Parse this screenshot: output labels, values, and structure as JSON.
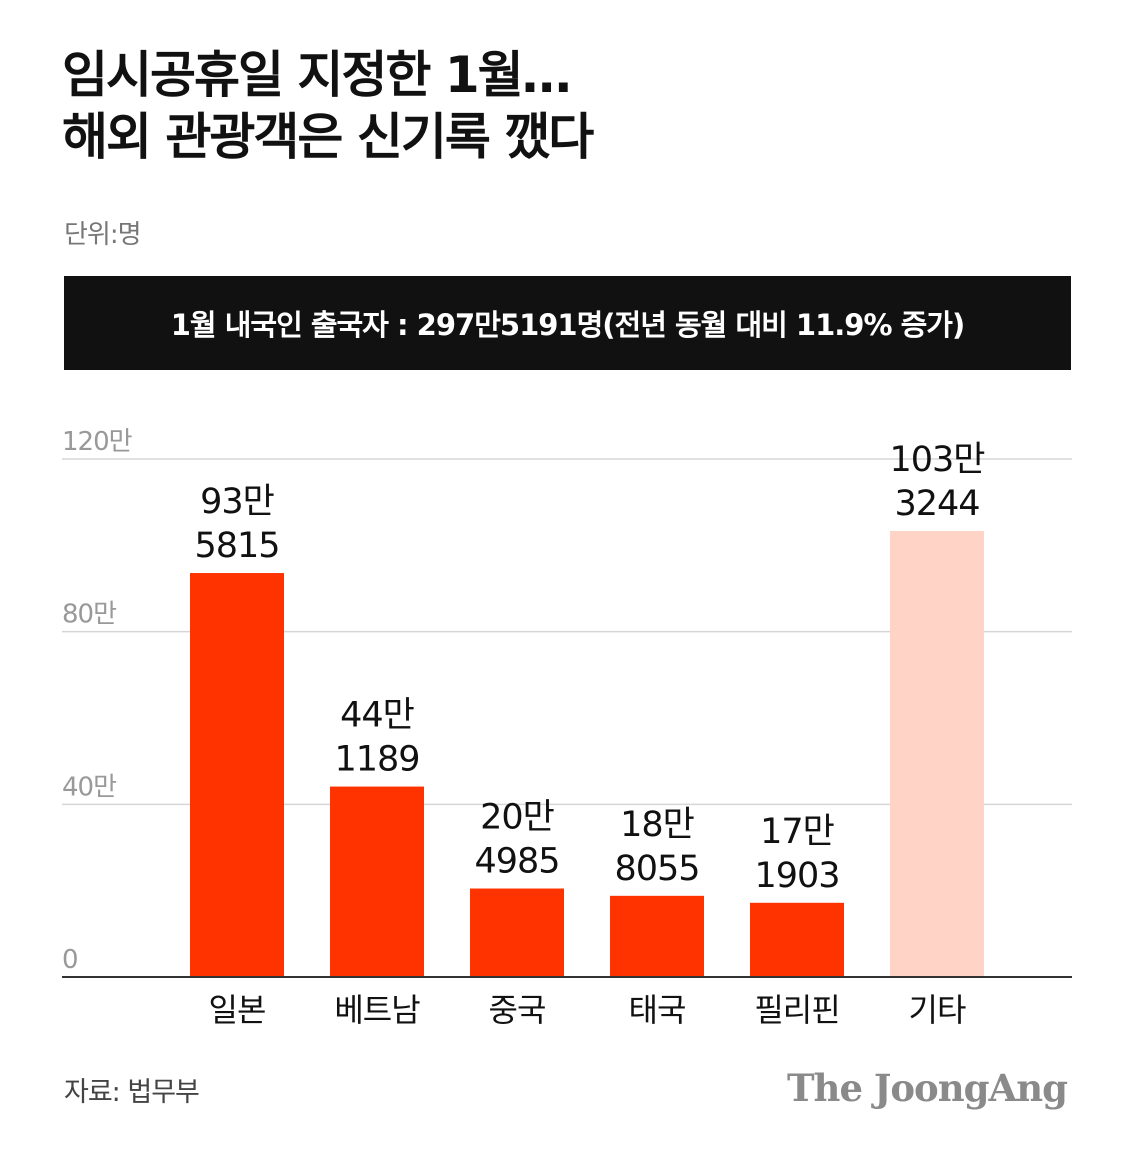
{
  "title_lines": [
    "임시공휴일 지정한 1월…",
    "해외 관광객은 신기록 깼다"
  ],
  "unit_label": "단위:명",
  "banner_text": "1월 내국인 출국자 : 297만5191명(전년 동월 대비 11.9% 증가)",
  "source": "자료: 법무부",
  "brand": "The JoongAng",
  "colors": {
    "bar": "#ff3300",
    "bar_highlight": "#ffd3c5",
    "banner_bg": "#111111",
    "grid": "#d6d6d6",
    "axis_label": "#999999"
  },
  "chart_data": {
    "type": "bar",
    "categories": [
      "일본",
      "베트남",
      "중국",
      "태국",
      "필리핀",
      "기타"
    ],
    "values": [
      935815,
      441189,
      204985,
      188055,
      171903,
      1033244
    ],
    "data_labels": [
      [
        "93만",
        "5815"
      ],
      [
        "44만",
        "1189"
      ],
      [
        "20만",
        "4985"
      ],
      [
        "18만",
        "8055"
      ],
      [
        "17만",
        "1903"
      ],
      [
        "103만",
        "3244"
      ]
    ],
    "yticks": [
      0,
      400000,
      800000,
      1200000
    ],
    "ytick_labels": [
      "0",
      "40만",
      "80만",
      "120만"
    ],
    "ylim": [
      0,
      1200000
    ],
    "grid": true,
    "highlight_category": "기타"
  }
}
